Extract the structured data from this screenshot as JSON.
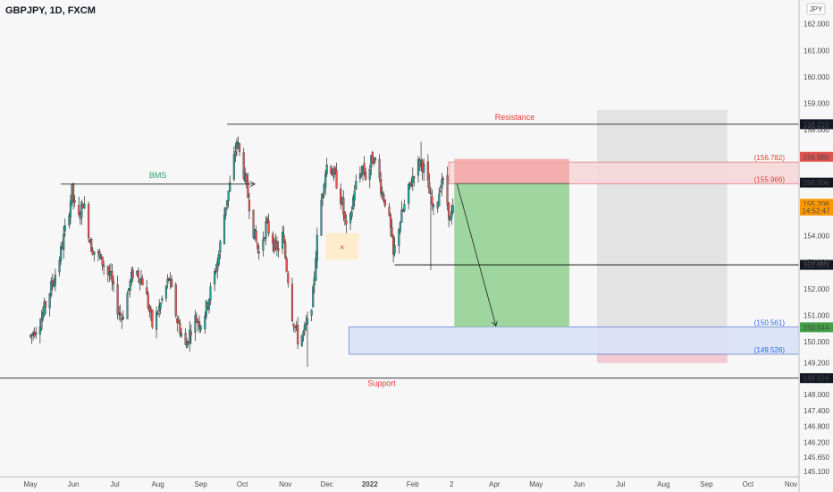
{
  "chart_data": {
    "type": "candlestick",
    "title": "GBPJPY, 1D, FXCM",
    "currency": "JPY",
    "ylim": [
      144.9,
      162.9
    ],
    "y_ticks": [
      "162.000",
      "161.000",
      "160.000",
      "159.000",
      "158.000",
      "157.000",
      "156.000",
      "155.000",
      "154.000",
      "153.000",
      "152.000",
      "151.000",
      "150.000",
      "149.200",
      "148.000",
      "147.400",
      "146.800",
      "146.200",
      "145.650",
      "145.100"
    ],
    "y_tick_values": [
      162.0,
      161.0,
      160.0,
      159.0,
      158.0,
      157.0,
      156.0,
      155.0,
      154.0,
      153.0,
      152.0,
      151.0,
      150.0,
      149.2,
      148.0,
      147.4,
      146.8,
      146.2,
      145.65,
      145.1
    ],
    "x_ticks": [
      "May",
      "Jun",
      "Jul",
      "Aug",
      "Sep",
      "Oct",
      "Nov",
      "Dec",
      "2022",
      "Feb",
      "2",
      "Apr",
      "May",
      "Jun",
      "Jul",
      "Aug",
      "Sep",
      "Oct",
      "Nov"
    ],
    "x_tick_days": [
      0,
      31,
      61,
      92,
      123,
      153,
      184,
      214,
      245,
      276,
      304,
      335,
      365,
      396,
      426,
      457,
      488,
      518,
      549
    ],
    "bull_color": "#26a69a",
    "bear_color": "#ef5350",
    "candles": {
      "start_day": 0,
      "end_day": 306,
      "anchors": [
        [
          0,
          150.2
        ],
        [
          8,
          150.9
        ],
        [
          14,
          151.9
        ],
        [
          20,
          152.9
        ],
        [
          27,
          154.7
        ],
        [
          30,
          155.7
        ],
        [
          34,
          154.4
        ],
        [
          38,
          155.3
        ],
        [
          44,
          153.6
        ],
        [
          52,
          153.0
        ],
        [
          58,
          152.4
        ],
        [
          62,
          151.4
        ],
        [
          66,
          150.9
        ],
        [
          70,
          151.8
        ],
        [
          75,
          152.8
        ],
        [
          82,
          152.2
        ],
        [
          88,
          150.6
        ],
        [
          94,
          151.4
        ],
        [
          100,
          152.4
        ],
        [
          106,
          150.8
        ],
        [
          112,
          149.8
        ],
        [
          118,
          150.9
        ],
        [
          124,
          150.7
        ],
        [
          128,
          151.5
        ],
        [
          132,
          152.3
        ],
        [
          136,
          153.3
        ],
        [
          141,
          155.2
        ],
        [
          144,
          155.9
        ],
        [
          147,
          156.9
        ],
        [
          149,
          157.6
        ],
        [
          151,
          157.1
        ],
        [
          154,
          156.4
        ],
        [
          158,
          155.2
        ],
        [
          161,
          154.2
        ],
        [
          165,
          153.3
        ],
        [
          170,
          154.4
        ],
        [
          174,
          154.0
        ],
        [
          178,
          153.4
        ],
        [
          182,
          154.0
        ],
        [
          186,
          152.4
        ],
        [
          189,
          151.0
        ],
        [
          193,
          150.1
        ],
        [
          197,
          150.3
        ],
        [
          201,
          150.8
        ],
        [
          204,
          151.8
        ],
        [
          206,
          153.3
        ],
        [
          209,
          154.9
        ],
        [
          212,
          156.2
        ],
        [
          215,
          156.9
        ],
        [
          218,
          156.4
        ],
        [
          222,
          155.9
        ],
        [
          225,
          155.2
        ],
        [
          228,
          154.2
        ],
        [
          231,
          154.6
        ],
        [
          234,
          155.8
        ],
        [
          237,
          156.2
        ],
        [
          240,
          156.6
        ],
        [
          243,
          156.1
        ],
        [
          246,
          156.8
        ],
        [
          248,
          157.0
        ],
        [
          251,
          156.4
        ],
        [
          254,
          155.6
        ],
        [
          257,
          155.2
        ],
        [
          260,
          154.2
        ],
        [
          262,
          153.2
        ],
        [
          266,
          154.4
        ],
        [
          270,
          155.1
        ],
        [
          274,
          155.9
        ],
        [
          278,
          156.6
        ],
        [
          282,
          156.8
        ],
        [
          285,
          156.4
        ],
        [
          288,
          155.6
        ],
        [
          291,
          154.9
        ],
        [
          294,
          155.4
        ],
        [
          297,
          156.2
        ],
        [
          300,
          155.5
        ],
        [
          303,
          154.6
        ],
        [
          306,
          155.1
        ]
      ],
      "special_lows": [
        [
          76,
          148.75
        ],
        [
          200,
          149.05
        ],
        [
          289,
          152.7
        ]
      ],
      "special_highs": [
        [
          150,
          157.75
        ],
        [
          282,
          157.55
        ]
      ]
    },
    "horizontal_lines": [
      {
        "label": "Resistance",
        "value": 158.21,
        "value_label": "158.210",
        "color": "#000000",
        "label_color": "#e53935"
      },
      {
        "label": "Support",
        "value": 148.624,
        "value_label": "148.624",
        "color": "#000000",
        "label_color": "#e53935"
      },
      {
        "label": "",
        "value": 152.901,
        "value_label": "152.901",
        "color": "#000000",
        "label_color": "#000000"
      }
    ],
    "zones": [
      {
        "name": "supply-zone",
        "top": 156.782,
        "bottom": 155.966,
        "top_label": "(156.782)",
        "bottom_label": "(155.966)",
        "fill": "#f8d7da",
        "stroke": "#e57373",
        "label_color": "#e53935"
      },
      {
        "name": "demand-zone",
        "top": 150.561,
        "bottom": 149.526,
        "top_label": "(150.561)",
        "bottom_label": "(149.526)",
        "fill": "#dbe3f8",
        "stroke": "#5c7ccf",
        "label_color": "#2962ff"
      }
    ],
    "bms_label": "BMS",
    "bms_color": "#26a269",
    "price_badges": [
      {
        "text": "156.980",
        "value": 156.98,
        "bg": "#e0524f",
        "fg": "#ffffff"
      },
      {
        "text": "156.006",
        "value": 156.006,
        "bg": "#131722",
        "fg": "#ffffff"
      },
      {
        "text": "155.208",
        "value": 155.208,
        "bg": "#ff9800",
        "fg": "#ffffff"
      },
      {
        "text": "14:52:47",
        "value": 154.95,
        "bg": "#ff9800",
        "fg": "#ffffff"
      },
      {
        "text": "150.544",
        "value": 150.544,
        "bg": "#43a047",
        "fg": "#ffffff"
      }
    ],
    "cross_marker": "×"
  }
}
